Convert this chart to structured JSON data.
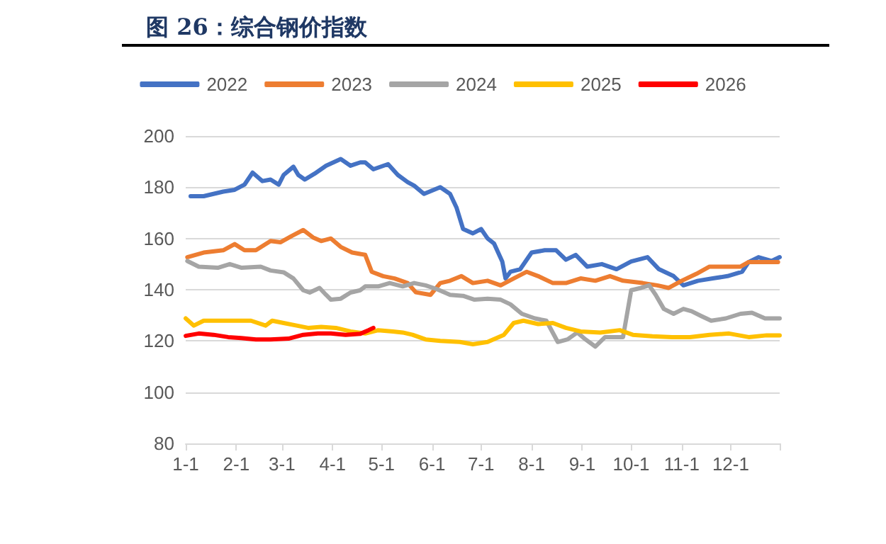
{
  "chart_data": {
    "type": "line",
    "title": "图 26：综合钢价指数",
    "xlim": [
      "--01-01",
      "--12-31"
    ],
    "xticks": [
      {
        "value": "--01-01",
        "label": "1-1"
      },
      {
        "value": "--02-01",
        "label": "2-1"
      },
      {
        "value": "--03-01",
        "label": "3-1"
      },
      {
        "value": "--04-01",
        "label": "4-1"
      },
      {
        "value": "--05-01",
        "label": "5-1"
      },
      {
        "value": "--06-01",
        "label": "6-1"
      },
      {
        "value": "--07-01",
        "label": "7-1"
      },
      {
        "value": "--08-01",
        "label": "8-1"
      },
      {
        "value": "--09-01",
        "label": "9-1"
      },
      {
        "value": "--10-01",
        "label": "10-1"
      },
      {
        "value": "--11-01",
        "label": "11-1"
      },
      {
        "value": "--12-01",
        "label": "12-1"
      },
      {
        "value": "--12-31",
        "label": null
      }
    ],
    "ylim": [
      80,
      200
    ],
    "yticks": [
      80,
      100,
      120,
      140,
      160,
      180,
      200
    ],
    "grid": "y",
    "legend": "top",
    "marker": "none",
    "line_style": "solid",
    "series": [
      {
        "name": "2022",
        "color": "#4472c4",
        "x": [
          "--01-04",
          "--01-12",
          "--01-18",
          "--01-24",
          "--01-31",
          "--02-06",
          "--02-11",
          "--02-17",
          "--02-22",
          "--02-27",
          "--03-02",
          "--03-08",
          "--03-11",
          "--03-15",
          "--03-21",
          "--03-28",
          "--04-06",
          "--04-12",
          "--04-18",
          "--04-21",
          "--04-26",
          "--05-05",
          "--05-11",
          "--05-17",
          "--05-21",
          "--05-27",
          "--06-06",
          "--06-12",
          "--06-16",
          "--06-20",
          "--06-26",
          "--07-01",
          "--07-05",
          "--07-09",
          "--07-14",
          "--07-16",
          "--07-19",
          "--07-25",
          "--08-01",
          "--08-09",
          "--08-16",
          "--08-22",
          "--08-28",
          "--09-04",
          "--09-13",
          "--09-22",
          "--10-01",
          "--10-11",
          "--10-18",
          "--10-27",
          "--11-02",
          "--11-11",
          "--11-20",
          "--11-29",
          "--12-08",
          "--12-12",
          "--12-18",
          "--12-26",
          "--12-31"
        ],
        "values": [
          176.5,
          176.5,
          177.4,
          178.3,
          179,
          181,
          185.7,
          182.4,
          183,
          181,
          184.8,
          188,
          184.8,
          183,
          185.3,
          188.4,
          191,
          188.4,
          189.7,
          189.7,
          187,
          189,
          184.8,
          182,
          180.6,
          177.4,
          180,
          177.4,
          172,
          163.7,
          162,
          163.7,
          160,
          158,
          151,
          144.4,
          147,
          148,
          154.5,
          155.4,
          155.4,
          151.7,
          153.6,
          149,
          150,
          148,
          151,
          152.7,
          148,
          145.3,
          141.7,
          143.5,
          144.4,
          145.3,
          147,
          150.8,
          152.7,
          151.2,
          152.7
        ]
      },
      {
        "name": "2023",
        "color": "#ed7d31",
        "x": [
          "--01-02",
          "--01-12",
          "--01-24",
          "--01-31",
          "--02-06",
          "--02-13",
          "--02-22",
          "--02-28",
          "--03-07",
          "--03-14",
          "--03-20",
          "--03-25",
          "--03-31",
          "--04-06",
          "--04-13",
          "--04-21",
          "--04-25",
          "--05-02",
          "--05-09",
          "--05-17",
          "--05-22",
          "--05-31",
          "--06-06",
          "--06-12",
          "--06-19",
          "--06-26",
          "--07-05",
          "--07-13",
          "--07-21",
          "--07-29",
          "--08-05",
          "--08-14",
          "--08-22",
          "--08-31",
          "--09-09",
          "--09-18",
          "--09-26",
          "--10-08",
          "--10-17",
          "--10-24",
          "--11-01",
          "--11-10",
          "--11-18",
          "--11-27",
          "--12-07",
          "--12-12",
          "--12-20",
          "--12-30"
        ],
        "values": [
          152.7,
          154.5,
          155.4,
          157.8,
          155.4,
          155.4,
          159,
          158.5,
          161,
          163.3,
          160.4,
          159,
          160,
          156.7,
          154.5,
          153.6,
          147,
          145.3,
          144.4,
          142.6,
          139,
          138,
          142.6,
          143.5,
          145.3,
          142.6,
          143.5,
          141.7,
          144.4,
          147,
          145.3,
          142.6,
          142.6,
          144.4,
          143.5,
          145.3,
          143.5,
          142.6,
          141.7,
          140.7,
          143.5,
          146.2,
          149,
          149,
          149,
          150.8,
          150.8,
          150.8
        ]
      },
      {
        "name": "2024",
        "color": "#a5a5a5",
        "x": [
          "--01-02",
          "--01-09",
          "--01-21",
          "--01-28",
          "--02-04",
          "--02-16",
          "--02-22",
          "--03-02",
          "--03-08",
          "--03-14",
          "--03-18",
          "--03-24",
          "--03-28",
          "--03-31",
          "--04-06",
          "--04-12",
          "--04-18",
          "--04-21",
          "--04-29",
          "--05-06",
          "--05-14",
          "--05-21",
          "--05-28",
          "--06-04",
          "--06-12",
          "--06-20",
          "--06-27",
          "--07-05",
          "--07-13",
          "--07-19",
          "--07-26",
          "--08-03",
          "--08-10",
          "--08-17",
          "--08-23",
          "--08-29",
          "--09-03",
          "--09-09",
          "--09-15",
          "--09-21",
          "--09-26",
          "--09-28",
          "--10-01",
          "--10-07",
          "--10-12",
          "--10-16",
          "--10-21",
          "--10-27",
          "--11-02",
          "--11-07",
          "--11-13",
          "--11-19",
          "--11-28",
          "--12-07",
          "--12-14",
          "--12-22",
          "--12-31"
        ],
        "values": [
          151.2,
          149,
          148.6,
          150,
          148.6,
          149,
          147.5,
          146.8,
          144.4,
          139.8,
          138.9,
          140.7,
          138,
          136.1,
          136.5,
          138.9,
          139.8,
          141.3,
          141.3,
          142.6,
          141.3,
          142.6,
          141.7,
          140.2,
          138,
          137.6,
          136.1,
          136.5,
          136.1,
          134.3,
          130.6,
          128.8,
          127.9,
          119.6,
          120.6,
          123.3,
          120.6,
          117.8,
          121.5,
          121.5,
          121.5,
          128.8,
          139.8,
          140.7,
          141.7,
          138,
          132.5,
          130.6,
          132.5,
          131.6,
          129.7,
          127.9,
          128.8,
          130.6,
          131,
          128.8,
          128.8
        ]
      },
      {
        "name": "2025",
        "color": "#ffc000",
        "x": [
          "--01-01",
          "--01-06",
          "--01-12",
          "--01-21",
          "--02-01",
          "--02-10",
          "--02-19",
          "--02-23",
          "--03-02",
          "--03-10",
          "--03-17",
          "--03-25",
          "--04-03",
          "--04-12",
          "--04-21",
          "--04-29",
          "--05-08",
          "--05-14",
          "--05-20",
          "--05-28",
          "--06-06",
          "--06-18",
          "--06-26",
          "--07-05",
          "--07-15",
          "--07-21",
          "--07-27",
          "--08-05",
          "--08-14",
          "--08-22",
          "--08-31",
          "--09-12",
          "--09-24",
          "--10-02",
          "--10-14",
          "--10-26",
          "--11-06",
          "--11-18",
          "--11-30",
          "--12-12",
          "--12-23",
          "--12-31"
        ],
        "values": [
          128.8,
          126,
          127.9,
          127.9,
          127.9,
          127.9,
          126,
          127.9,
          127,
          126,
          125.1,
          125.5,
          125.1,
          123.7,
          122.9,
          124.2,
          123.7,
          123.3,
          122.4,
          120.6,
          120,
          119.6,
          118.7,
          119.6,
          122.4,
          127,
          127.9,
          126.6,
          127,
          125.1,
          123.7,
          123.3,
          124.2,
          122.4,
          121.8,
          121.5,
          121.5,
          122.4,
          122.9,
          121.5,
          122.2,
          122.2
        ]
      },
      {
        "name": "2026",
        "color": "#ff0000",
        "x": [
          "--01-01",
          "--01-09",
          "--01-18",
          "--01-27",
          "--02-04",
          "--02-13",
          "--02-22",
          "--03-05",
          "--03-14",
          "--03-23",
          "--03-31",
          "--04-09",
          "--04-18",
          "--04-23",
          "--04-26"
        ],
        "values": [
          122,
          122.9,
          122.4,
          121.5,
          121.1,
          120.6,
          120.6,
          120.9,
          122.4,
          122.9,
          122.9,
          122.4,
          122.8,
          124.2,
          125.1
        ]
      }
    ]
  }
}
